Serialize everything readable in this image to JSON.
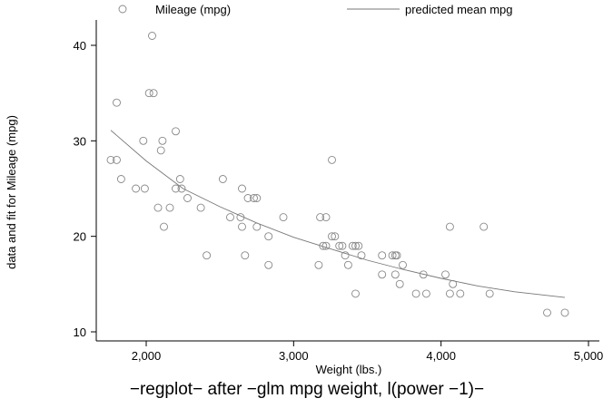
{
  "chart_data": {
    "type": "scatter",
    "title": "−regplot− after −glm mpg weight, l(power −1)−",
    "xlabel": "Weight (lbs.)",
    "ylabel": "data and fit for Mileage (mpg)",
    "xlim": [
      1700,
      5000
    ],
    "ylim": [
      9,
      42.5
    ],
    "xticks": [
      2000,
      3000,
      4000,
      5000
    ],
    "xtick_labels": [
      "2,000",
      "3,000",
      "4,000",
      "5,000"
    ],
    "yticks": [
      10,
      20,
      30,
      40
    ],
    "ytick_labels": [
      "10",
      "20",
      "30",
      "40"
    ],
    "grid": false,
    "legend_position": "top",
    "colors": {
      "marker": "#888888",
      "line": "#777777",
      "axis": "#000000"
    },
    "series": [
      {
        "name": "Mileage (mpg)",
        "kind": "scatter",
        "points": [
          [
            2040,
            41
          ],
          [
            2020,
            35
          ],
          [
            2050,
            35
          ],
          [
            1800,
            34
          ],
          [
            1980,
            30
          ],
          [
            2110,
            30
          ],
          [
            2200,
            31
          ],
          [
            2100,
            29
          ],
          [
            1760,
            28
          ],
          [
            1800,
            28
          ],
          [
            3260,
            28
          ],
          [
            2230,
            26
          ],
          [
            1830,
            26
          ],
          [
            2520,
            26
          ],
          [
            1930,
            25
          ],
          [
            1990,
            25
          ],
          [
            2200,
            25
          ],
          [
            2650,
            25
          ],
          [
            2240,
            25
          ],
          [
            2280,
            24
          ],
          [
            2690,
            24
          ],
          [
            2730,
            24
          ],
          [
            2750,
            24
          ],
          [
            2080,
            23
          ],
          [
            2160,
            23
          ],
          [
            2370,
            23
          ],
          [
            2120,
            21
          ],
          [
            2570,
            22
          ],
          [
            2640,
            22
          ],
          [
            2930,
            22
          ],
          [
            3180,
            22
          ],
          [
            3220,
            22
          ],
          [
            2650,
            21
          ],
          [
            2750,
            21
          ],
          [
            4060,
            21
          ],
          [
            4290,
            21
          ],
          [
            2830,
            20
          ],
          [
            3260,
            20
          ],
          [
            3280,
            20
          ],
          [
            3200,
            19
          ],
          [
            3220,
            19
          ],
          [
            3310,
            19
          ],
          [
            3330,
            19
          ],
          [
            3400,
            19
          ],
          [
            3420,
            19
          ],
          [
            3440,
            19
          ],
          [
            2410,
            18
          ],
          [
            2670,
            18
          ],
          [
            3350,
            18
          ],
          [
            3460,
            18
          ],
          [
            3600,
            18
          ],
          [
            3670,
            18
          ],
          [
            3690,
            18
          ],
          [
            3700,
            18
          ],
          [
            2830,
            17
          ],
          [
            3170,
            17
          ],
          [
            3370,
            17
          ],
          [
            3740,
            17
          ],
          [
            3600,
            16
          ],
          [
            3690,
            16
          ],
          [
            3880,
            16
          ],
          [
            4030,
            16
          ],
          [
            3720,
            15
          ],
          [
            4080,
            15
          ],
          [
            3420,
            14
          ],
          [
            3830,
            14
          ],
          [
            3900,
            14
          ],
          [
            4060,
            14
          ],
          [
            4130,
            14
          ],
          [
            4330,
            14
          ],
          [
            4720,
            12
          ],
          [
            4840,
            12
          ]
        ]
      },
      {
        "name": "predicted mean mpg",
        "kind": "line",
        "points": [
          [
            1760,
            31.1
          ],
          [
            2000,
            27.9
          ],
          [
            2250,
            25.0
          ],
          [
            2500,
            23.1
          ],
          [
            2750,
            21.4
          ],
          [
            3000,
            19.9
          ],
          [
            3250,
            18.7
          ],
          [
            3500,
            17.5
          ],
          [
            3750,
            16.5
          ],
          [
            4000,
            15.6
          ],
          [
            4250,
            14.8
          ],
          [
            4500,
            14.2
          ],
          [
            4840,
            13.6
          ]
        ]
      }
    ]
  }
}
